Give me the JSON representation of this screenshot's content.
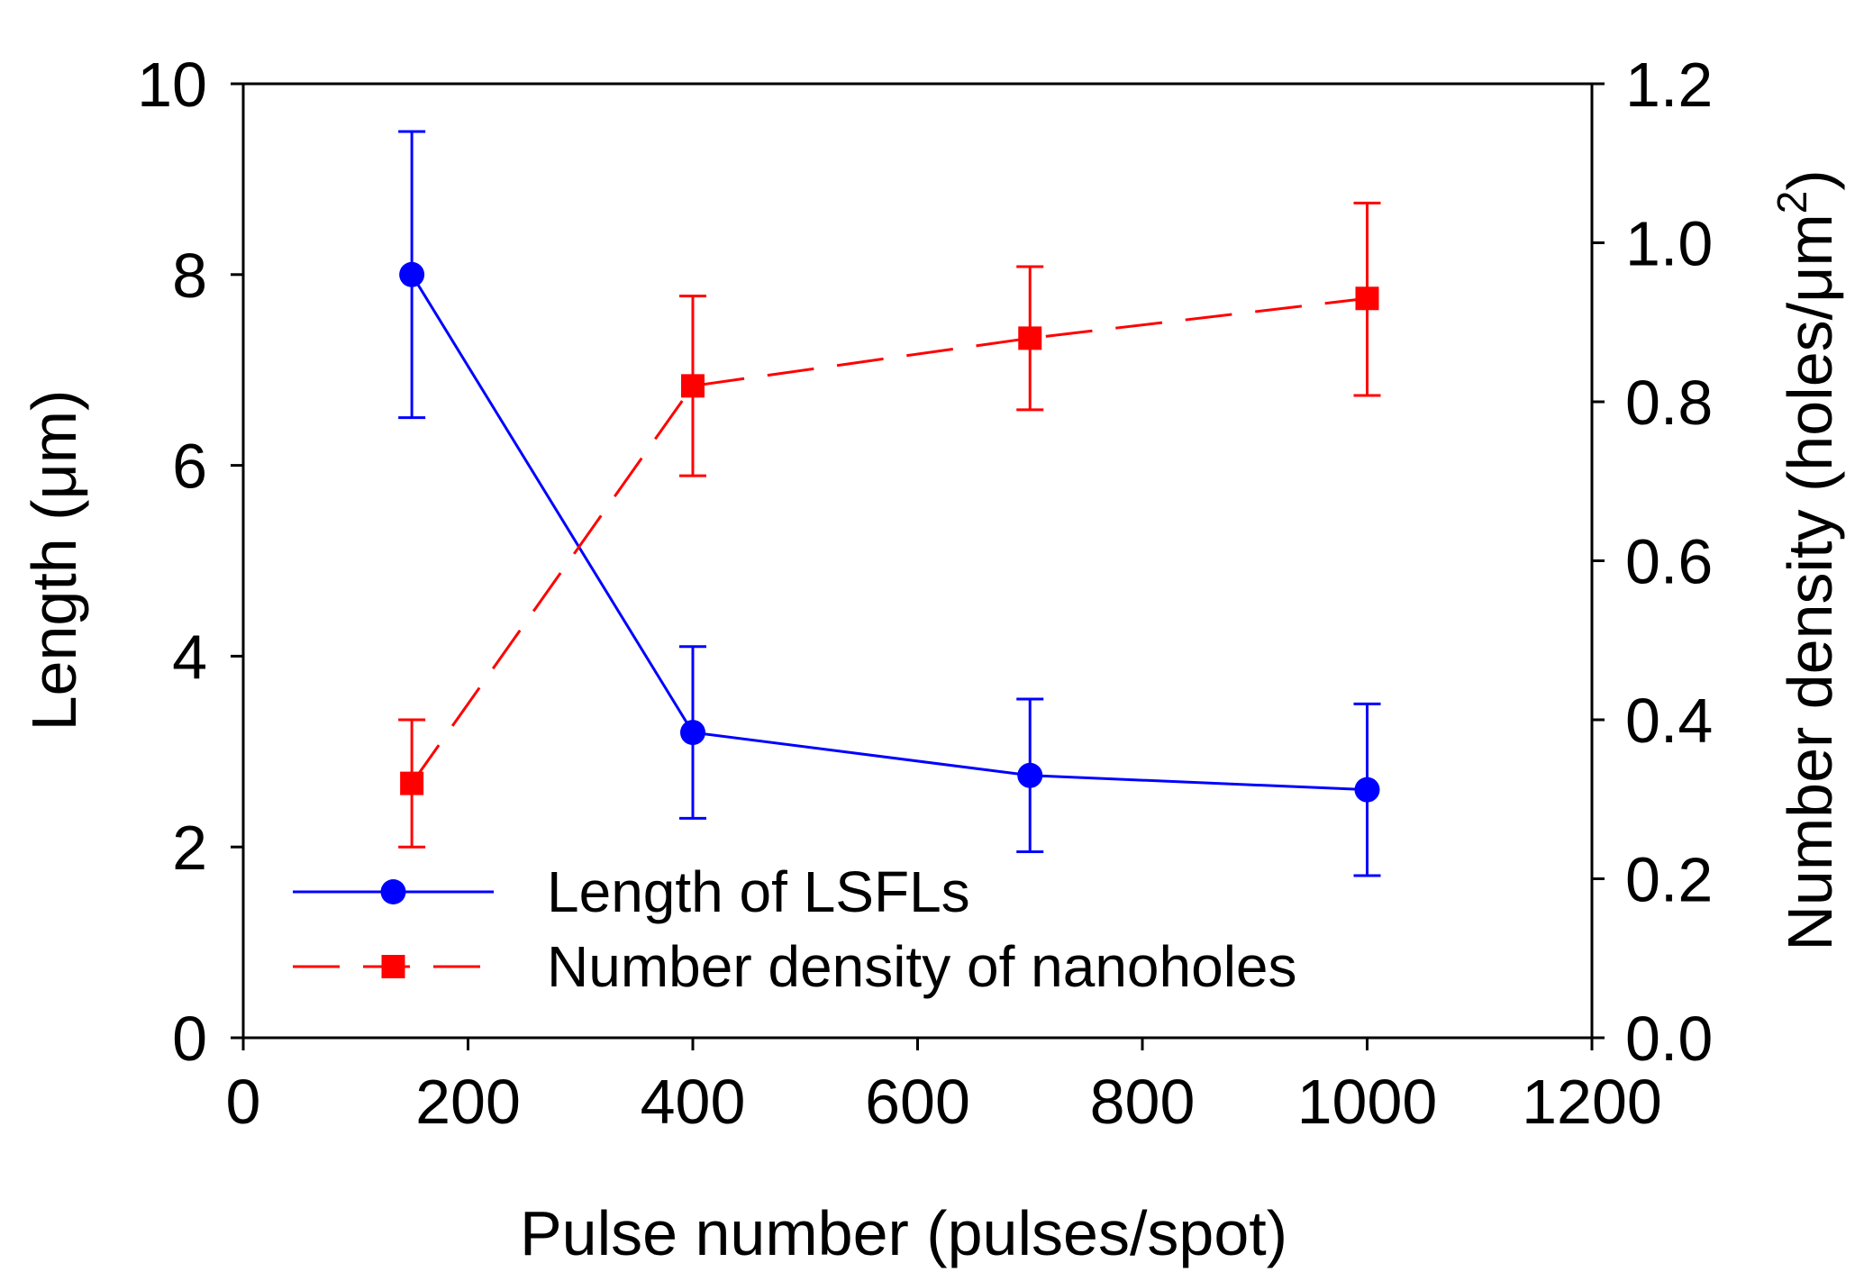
{
  "chart_data": {
    "type": "line",
    "title": "",
    "xlabel": "Pulse number (pulses/spot)",
    "ylabel": "Length (μm)",
    "ylabel_right": {
      "prefix": "Number density (holes/μm",
      "superscript": "2",
      "suffix": ")"
    },
    "xlim": [
      0,
      1200
    ],
    "ylim": [
      0,
      10
    ],
    "ylim_right": [
      0,
      1.2
    ],
    "xticks": [
      "0",
      "200",
      "400",
      "600",
      "800",
      "1000",
      "1200"
    ],
    "yticks": [
      "0",
      "2",
      "4",
      "6",
      "8",
      "10"
    ],
    "yticks_right": [
      "0.0",
      "0.2",
      "0.4",
      "0.6",
      "0.8",
      "1.0",
      "1.2"
    ],
    "grid": false,
    "legend_position": "bottom-left",
    "series": [
      {
        "name": "Length of LSFLs",
        "axis": "left",
        "color": "#0000ff",
        "line_style": "solid",
        "marker": "circle",
        "x": [
          150,
          400,
          700,
          1000
        ],
        "y": [
          8.0,
          3.2,
          2.75,
          2.6
        ],
        "err_low": [
          6.5,
          2.3,
          1.95,
          1.7
        ],
        "err_high": [
          9.5,
          4.1,
          3.55,
          3.5
        ]
      },
      {
        "name": "Number density of nanoholes",
        "axis": "right",
        "color": "#ff0000",
        "line_style": "dashed",
        "marker": "square",
        "x": [
          150,
          400,
          700,
          1000
        ],
        "y": [
          0.32,
          0.82,
          0.88,
          0.93
        ],
        "err_low": [
          0.24,
          0.707,
          0.79,
          0.808
        ],
        "err_high": [
          0.4,
          0.933,
          0.97,
          1.05
        ]
      }
    ]
  }
}
